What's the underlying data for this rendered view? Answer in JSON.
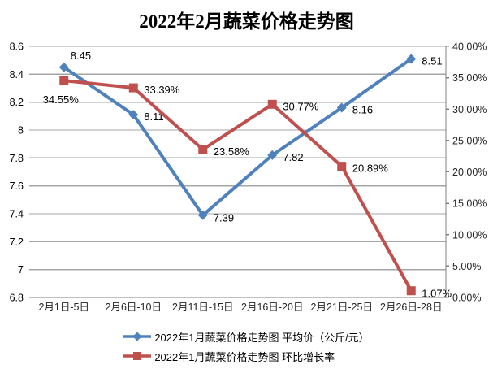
{
  "chart_data": {
    "type": "line",
    "title": "2022年2月蔬菜价格走势图",
    "categories": [
      "2月1日-5日",
      "2月6日-10日",
      "2月11日-15日",
      "2月16日-20日",
      "2月21日-25日",
      "2月26日-28日"
    ],
    "series": [
      {
        "name": "2022年1月蔬菜价格走势图 平均价（公斤/元）",
        "axis": "left",
        "marker": "diamond",
        "color": "#4F81BD",
        "values": [
          8.45,
          8.11,
          7.39,
          7.82,
          8.16,
          8.51
        ],
        "data_labels": [
          "8.45",
          "8.11",
          "7.39",
          "7.82",
          "8.16",
          "8.51"
        ]
      },
      {
        "name": "2022年1月蔬菜价格走势图 环比增长率",
        "axis": "right",
        "marker": "square",
        "color": "#C0504D",
        "values": [
          34.55,
          33.39,
          23.58,
          30.77,
          20.89,
          1.07
        ],
        "data_labels": [
          "34.55%",
          "33.39%",
          "23.58%",
          "30.77%",
          "20.89%",
          "1.07%"
        ]
      }
    ],
    "left_axis": {
      "min": 6.8,
      "max": 8.6,
      "step": 0.2,
      "ticks": [
        "8.6",
        "8.4",
        "8.2",
        "8",
        "7.8",
        "7.6",
        "7.4",
        "7.2",
        "7",
        "6.8"
      ]
    },
    "right_axis": {
      "min": 0,
      "max": 40,
      "step": 5,
      "ticks": [
        "40.00%",
        "35.00%",
        "30.00%",
        "25.00%",
        "20.00%",
        "15.00%",
        "10.00%",
        "5.00%",
        "0.00%"
      ]
    },
    "grid": true,
    "legend_position": "bottom",
    "colors": {
      "gridline": "#A6A6A6",
      "axis_line": "#808080",
      "data_label_text": "#000000",
      "axis_text": "#262626",
      "title_text": "#000000"
    }
  }
}
